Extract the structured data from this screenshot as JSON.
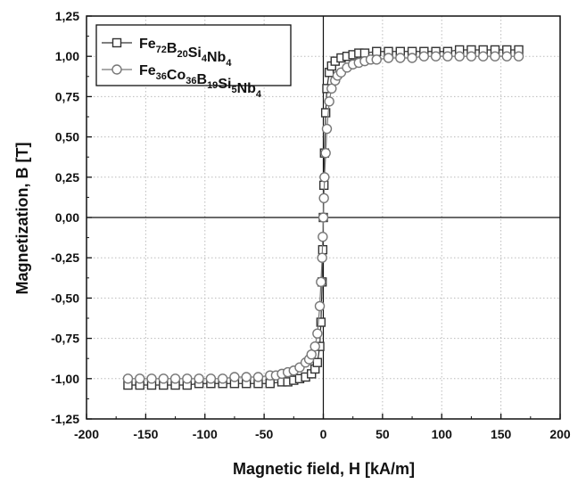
{
  "chart_data": {
    "type": "scatter",
    "xlabel": "Magnetic field, H [kA/m]",
    "ylabel": "Magnetization, B [T]",
    "xlim": [
      -200,
      200
    ],
    "ylim": [
      -1.25,
      1.25
    ],
    "x_ticks": [
      -200,
      -150,
      -100,
      -50,
      0,
      50,
      100,
      150,
      200
    ],
    "x_tick_labels": [
      "-200",
      "-150",
      "-100",
      "-50",
      "0",
      "50",
      "100",
      "150",
      "200"
    ],
    "y_ticks": [
      -1.25,
      -1.0,
      -0.75,
      -0.5,
      -0.25,
      0.0,
      0.25,
      0.5,
      0.75,
      1.0,
      1.25
    ],
    "y_tick_labels": [
      "-1,25",
      "-1,00",
      "-0,75",
      "-0,50",
      "-0,25",
      "0,00",
      "0,25",
      "0,50",
      "0,75",
      "1,00",
      "1,25"
    ],
    "grid": true,
    "legend_position": "top-left",
    "series": [
      {
        "name": "Fe72B20Si4Nb4",
        "legend_parts": [
          {
            "t": "Fe",
            "sub": false
          },
          {
            "t": "72",
            "sub": true
          },
          {
            "t": "B",
            "sub": false
          },
          {
            "t": "20",
            "sub": true
          },
          {
            "t": "Si",
            "sub": false
          },
          {
            "t": "4",
            "sub": true
          },
          {
            "t": "Nb",
            "sub": false
          },
          {
            "t": "4",
            "sub": true
          }
        ],
        "marker": "square",
        "color": "#333333",
        "x": [
          -165,
          -155,
          -145,
          -135,
          -125,
          -115,
          -105,
          -95,
          -85,
          -75,
          -65,
          -55,
          -45,
          -35,
          -30,
          -25,
          -20,
          -15,
          -10,
          -7,
          -5,
          -3,
          -2,
          -1,
          -0.5,
          0,
          0.5,
          1,
          2,
          3,
          5,
          7,
          10,
          15,
          20,
          25,
          30,
          35,
          45,
          55,
          65,
          75,
          85,
          95,
          105,
          115,
          125,
          135,
          145,
          155,
          165
        ],
        "y": [
          -1.04,
          -1.04,
          -1.04,
          -1.04,
          -1.04,
          -1.04,
          -1.03,
          -1.03,
          -1.03,
          -1.03,
          -1.03,
          -1.03,
          -1.03,
          -1.02,
          -1.02,
          -1.01,
          -1.0,
          -0.99,
          -0.97,
          -0.94,
          -0.9,
          -0.8,
          -0.65,
          -0.4,
          -0.2,
          0.0,
          0.2,
          0.4,
          0.65,
          0.8,
          0.9,
          0.94,
          0.97,
          0.99,
          1.0,
          1.01,
          1.02,
          1.02,
          1.03,
          1.03,
          1.03,
          1.03,
          1.03,
          1.03,
          1.03,
          1.04,
          1.04,
          1.04,
          1.04,
          1.04,
          1.04
        ]
      },
      {
        "name": "Fe36Co36B19Si5Nb4",
        "legend_parts": [
          {
            "t": "Fe",
            "sub": false
          },
          {
            "t": "36",
            "sub": true
          },
          {
            "t": "Co",
            "sub": false
          },
          {
            "t": "36",
            "sub": true
          },
          {
            "t": "B",
            "sub": false
          },
          {
            "t": "19",
            "sub": true
          },
          {
            "t": "Si",
            "sub": false
          },
          {
            "t": "5",
            "sub": true
          },
          {
            "t": "Nb",
            "sub": false
          },
          {
            "t": "4",
            "sub": true
          }
        ],
        "marker": "circle",
        "color": "#777777",
        "x": [
          -165,
          -155,
          -145,
          -135,
          -125,
          -115,
          -105,
          -95,
          -85,
          -75,
          -65,
          -55,
          -45,
          -40,
          -35,
          -30,
          -25,
          -20,
          -15,
          -12,
          -10,
          -7,
          -5,
          -3,
          -2,
          -1,
          -0.5,
          0,
          0.5,
          1,
          2,
          3,
          5,
          7,
          10,
          12,
          15,
          20,
          25,
          30,
          35,
          40,
          45,
          55,
          65,
          75,
          85,
          95,
          105,
          115,
          125,
          135,
          145,
          155,
          165
        ],
        "y": [
          -1.0,
          -1.0,
          -1.0,
          -1.0,
          -1.0,
          -1.0,
          -1.0,
          -1.0,
          -1.0,
          -0.99,
          -0.99,
          -0.99,
          -0.98,
          -0.98,
          -0.97,
          -0.96,
          -0.95,
          -0.93,
          -0.9,
          -0.88,
          -0.85,
          -0.8,
          -0.72,
          -0.55,
          -0.4,
          -0.25,
          -0.12,
          0.0,
          0.12,
          0.25,
          0.4,
          0.55,
          0.72,
          0.8,
          0.85,
          0.88,
          0.9,
          0.93,
          0.95,
          0.96,
          0.97,
          0.98,
          0.98,
          0.99,
          0.99,
          0.99,
          1.0,
          1.0,
          1.0,
          1.0,
          1.0,
          1.0,
          1.0,
          1.0,
          1.0
        ]
      }
    ]
  }
}
